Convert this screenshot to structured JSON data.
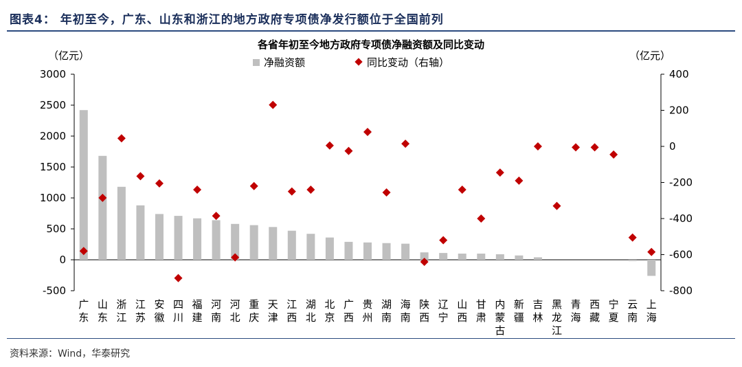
{
  "figure": {
    "title": "图表4： 年初至今，广东、山东和浙江的地方政府专项债净发行额位于全国前列",
    "source": "资料来源：Wind，华泰研究"
  },
  "colors": {
    "bar": "#bfbfbf",
    "marker": "#c00000",
    "rule": "#2b4a7e",
    "title": "#1a2e5a"
  },
  "chart_data": {
    "type": "bar",
    "title": "各省年初至今地方政府专项债净融资额及同比变动",
    "y_unit_left": "（亿元）",
    "y_unit_right": "（亿元）",
    "legend_position": "top-center",
    "grid": false,
    "categories": [
      "广东",
      "山东",
      "浙江",
      "江苏",
      "安徽",
      "四川",
      "福建",
      "河南",
      "河北",
      "重庆",
      "天津",
      "江西",
      "湖北",
      "北京",
      "广西",
      "贵州",
      "湖南",
      "海南",
      "陕西",
      "辽宁",
      "山西",
      "甘肃",
      "内蒙古",
      "新疆",
      "吉林",
      "黑龙江",
      "青海",
      "西藏",
      "宁夏",
      "云南",
      "上海"
    ],
    "ylim_left": [
      -500,
      3000
    ],
    "yticks_left": [
      "-500",
      "0",
      "500",
      "1000",
      "1500",
      "2000",
      "2500",
      "3000"
    ],
    "ylim_right": [
      -800,
      400
    ],
    "yticks_right": [
      "-800",
      "-600",
      "-400",
      "-200",
      "0",
      "200",
      "400"
    ],
    "series": [
      {
        "name": "净融资额",
        "type": "bar",
        "axis": "left",
        "values": [
          2420,
          1680,
          1180,
          880,
          740,
          710,
          670,
          640,
          580,
          560,
          530,
          470,
          420,
          360,
          290,
          280,
          270,
          260,
          120,
          110,
          100,
          100,
          90,
          70,
          40,
          0,
          0,
          0,
          0,
          -20,
          -260
        ]
      },
      {
        "name": "同比变动（右轴）",
        "type": "scatter",
        "marker": "diamond",
        "axis": "right",
        "values": [
          -580,
          -285,
          45,
          -165,
          -205,
          -730,
          -240,
          -385,
          -615,
          -220,
          230,
          -250,
          -240,
          5,
          -25,
          80,
          -255,
          15,
          -640,
          -520,
          -240,
          -400,
          -145,
          -190,
          0,
          -330,
          -5,
          -5,
          -45,
          -505,
          -585
        ]
      }
    ]
  }
}
